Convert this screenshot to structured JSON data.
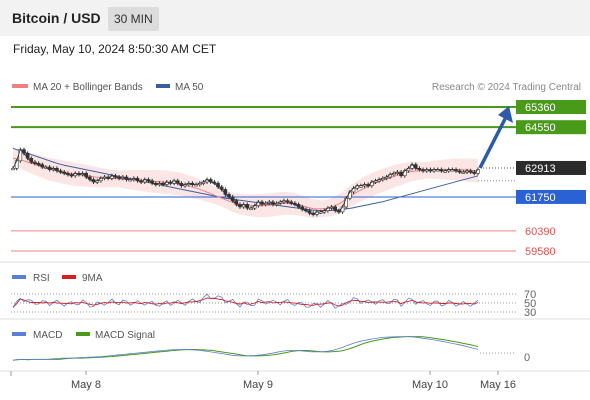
{
  "header": {
    "title": "Bitcoin / USD",
    "timeframe": "30 MIN"
  },
  "datetime": "Friday, May 10, 2024 8:50:30 AM CET",
  "legend": {
    "bb_label": "MA 20 + Bollinger Bands",
    "ma50_label": "MA 50",
    "copyright": "Research © 2024 Trading Central",
    "bb_color": "#f08080",
    "ma50_color": "#3a5fa0"
  },
  "colors": {
    "resistance": "#4a9a1a",
    "support": "#2a62d6",
    "target": "#f08080",
    "price": "#2b2b2b",
    "arrow": "#2a5aa8",
    "rsi": "#5b7fd6",
    "rsi_ma": "#d62020",
    "macd": "#5b7fd6",
    "macd_signal": "#4a9a1a"
  },
  "chart_data": {
    "type": "line",
    "title": "Bitcoin / USD",
    "x_labels": [
      "May 8",
      "May 9",
      "May 10",
      "May 16"
    ],
    "y_range": [
      58700,
      66200
    ],
    "levels": [
      {
        "value": 65360,
        "label": "65360",
        "role": "resistance"
      },
      {
        "value": 64550,
        "label": "64550",
        "role": "resistance"
      },
      {
        "value": 62913,
        "label": "62913",
        "role": "price"
      },
      {
        "value": 61750,
        "label": "61750",
        "role": "support"
      },
      {
        "value": 60390,
        "label": "60390",
        "role": "target"
      },
      {
        "value": 59580,
        "label": "59580",
        "role": "target"
      }
    ],
    "close": [
      62900,
      63200,
      63650,
      63500,
      63300,
      63150,
      63100,
      63050,
      62950,
      62950,
      62850,
      62900,
      62800,
      62750,
      62700,
      62650,
      62600,
      62700,
      62650,
      62700,
      62550,
      62450,
      62350,
      62400,
      62500,
      62550,
      62500,
      62600,
      62550,
      62500,
      62550,
      62450,
      62450,
      62500,
      62400,
      62350,
      62450,
      62400,
      62300,
      62250,
      62300,
      62250,
      62350,
      62300,
      62400,
      62300,
      62200,
      62250,
      62300,
      62250,
      62250,
      62300,
      62350,
      62450,
      62350,
      62300,
      62150,
      62050,
      61850,
      61750,
      61600,
      61450,
      61350,
      61450,
      61300,
      61300,
      61400,
      61550,
      61450,
      61500,
      61550,
      61450,
      61500,
      61550,
      61600,
      61550,
      61500,
      61450,
      61350,
      61250,
      61200,
      61100,
      61050,
      61150,
      61150,
      61200,
      61300,
      61350,
      61200,
      61150,
      61350,
      61700,
      61950,
      62100,
      62200,
      62200,
      62250,
      62200,
      62350,
      62400,
      62450,
      62500,
      62550,
      62650,
      62700,
      62750,
      62600,
      62800,
      62900,
      63050,
      62900,
      62850,
      62800,
      62850,
      62800,
      62850,
      62850,
      62800,
      62800,
      62850,
      62850,
      62800,
      62750,
      62750,
      62800,
      62750,
      62700,
      62850
    ],
    "ma20": [
      63300,
      63280,
      63240,
      63200,
      63150,
      63100,
      63050,
      63000,
      62950,
      62900,
      62860,
      62830,
      62800,
      62770,
      62740,
      62710,
      62680,
      62660,
      62640,
      62620,
      62600,
      62580,
      62560,
      62540,
      62520,
      62510,
      62500,
      62490,
      62480,
      62470,
      62460,
      62450,
      62440,
      62430,
      62420,
      62410,
      62400,
      62390,
      62380,
      62370,
      62360,
      62350,
      62340,
      62320,
      62300,
      62280,
      62250,
      62220,
      62180,
      62140,
      62100,
      62060,
      62000,
      61940,
      61880,
      61820,
      61760,
      61700,
      61640,
      61580,
      61530,
      61490,
      61460,
      61440,
      61420,
      61410,
      61400,
      61400,
      61400,
      61410,
      61420,
      61440,
      61460,
      61480,
      61490,
      61490,
      61480,
      61460,
      61430,
      61390,
      61350,
      61310,
      61280,
      61270,
      61270,
      61280,
      61300,
      61340,
      61400,
      61470,
      61560,
      61660,
      61760,
      61860,
      61950,
      62030,
      62100,
      62170,
      62240,
      62300,
      62360,
      62420,
      62470,
      62520,
      62570,
      62620,
      62660,
      62700,
      62740,
      62770,
      62790,
      62800,
      62810,
      62820,
      62830,
      62840,
      62850,
      62850,
      62850,
      62850,
      62850,
      62850,
      62850,
      62840,
      62830,
      62820,
      62810,
      62800
    ],
    "ma50": [
      63700,
      63650,
      63600,
      63550,
      63500,
      63450,
      63400,
      63350,
      63300,
      63250,
      63200,
      63150,
      63100,
      63060,
      63020,
      62990,
      62960,
      62930,
      62900,
      62870,
      62840,
      62810,
      62780,
      62750,
      62720,
      62690,
      62660,
      62630,
      62600,
      62570,
      62540,
      62510,
      62480,
      62450,
      62420,
      62390,
      62360,
      62330,
      62300,
      62270,
      62240,
      62210,
      62180,
      62150,
      62120,
      62090,
      62060,
      62030,
      62000,
      61970,
      61940,
      61910,
      61880,
      61850,
      61820,
      61790,
      61760,
      61730,
      61700,
      61680,
      61660,
      61640,
      61620,
      61600,
      61580,
      61560,
      61540,
      61520,
      61500,
      61480,
      61460,
      61440,
      61420,
      61400,
      61380,
      61360,
      61340,
      61320,
      61300,
      61280,
      61260,
      61240,
      61220,
      61210,
      61200,
      61200,
      61200,
      61210,
      61220,
      61230,
      61250,
      61270,
      61290,
      61320,
      61350,
      61380,
      61410,
      61440,
      61470,
      61500,
      61530,
      61560,
      61600,
      61640,
      61680,
      61720,
      61760,
      61800,
      61840,
      61880,
      61920,
      61960,
      62000,
      62040,
      62080,
      62120,
      62160,
      62200,
      62240,
      62280,
      62320,
      62360,
      62400,
      62440,
      62480,
      62520,
      62560,
      62600
    ],
    "projection": {
      "from": 62913,
      "to": 65360
    },
    "rsi": {
      "labels": [
        "RSI",
        "9MA"
      ],
      "levels": [
        70,
        50,
        30
      ]
    },
    "macd": {
      "labels": [
        "MACD",
        "MACD Signal"
      ],
      "zero_label": "0"
    }
  }
}
